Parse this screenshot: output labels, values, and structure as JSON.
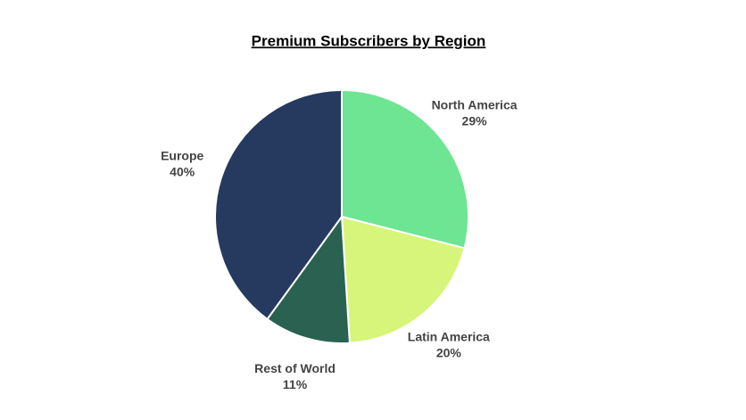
{
  "chart_data": {
    "type": "pie",
    "title": "Premium Subscribers by Region",
    "categories": [
      "North America",
      "Latin America",
      "Rest of World",
      "Europe"
    ],
    "values": [
      29,
      20,
      11,
      40
    ],
    "value_labels": [
      "29%",
      "20%",
      "11%",
      "40%"
    ],
    "colors": [
      "#6de593",
      "#d7f57a",
      "#2a6150",
      "#253a5e"
    ]
  }
}
